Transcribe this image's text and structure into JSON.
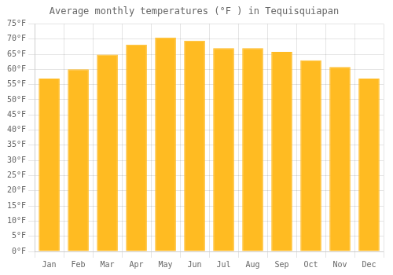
{
  "chart_data": {
    "type": "bar",
    "title": "Average monthly temperatures (°F ) in Tequisquiapan",
    "categories": [
      "Jan",
      "Feb",
      "Mar",
      "Apr",
      "May",
      "Jun",
      "Jul",
      "Aug",
      "Sep",
      "Oct",
      "Nov",
      "Dec"
    ],
    "values": [
      57.0,
      60.0,
      64.9,
      68.2,
      70.5,
      69.5,
      67.0,
      67.0,
      65.8,
      63.0,
      60.8,
      57.0
    ],
    "color": "#FFBB22",
    "ylim": [
      0,
      75
    ],
    "yticks": [
      {
        "value": 0,
        "label": "0°F"
      },
      {
        "value": 5,
        "label": "5°F"
      },
      {
        "value": 10,
        "label": "10°F"
      },
      {
        "value": 15,
        "label": "15°F"
      },
      {
        "value": 20,
        "label": "20°F"
      },
      {
        "value": 25,
        "label": "25°F"
      },
      {
        "value": 30,
        "label": "30°F"
      },
      {
        "value": 35,
        "label": "35°F"
      },
      {
        "value": 40,
        "label": "40°F"
      },
      {
        "value": 45,
        "label": "45°F"
      },
      {
        "value": 50,
        "label": "50°F"
      },
      {
        "value": 55,
        "label": "55°F"
      },
      {
        "value": 60,
        "label": "60°F"
      },
      {
        "value": 65,
        "label": "65°F"
      },
      {
        "value": 70,
        "label": "70°F"
      },
      {
        "value": 75,
        "label": "75°F"
      }
    ],
    "grid": true
  }
}
